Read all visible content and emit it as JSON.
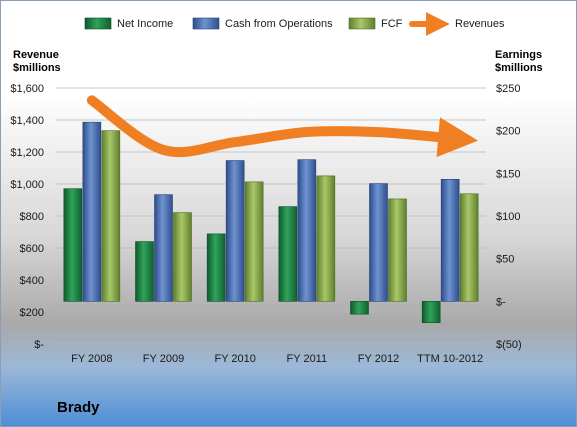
{
  "company": "Brady",
  "chart_data": {
    "type": "bar",
    "categories": [
      "FY 2008",
      "FY 2009",
      "FY 2010",
      "FY 2011",
      "FY 2012",
      "TTM 10-2012"
    ],
    "series": [
      {
        "name": "Net Income",
        "axis": "right",
        "kind": "bar",
        "color": "#1e8a4a",
        "values": [
          132,
          70,
          79,
          111,
          -15,
          -25
        ]
      },
      {
        "name": "Cash from Operations",
        "axis": "right",
        "kind": "bar",
        "color": "#4a6fb5",
        "values": [
          210,
          125,
          165,
          166,
          138,
          143
        ]
      },
      {
        "name": "FCF",
        "axis": "right",
        "kind": "bar",
        "color": "#8ab04e",
        "values": [
          200,
          104,
          140,
          147,
          120,
          126
        ]
      },
      {
        "name": "Revenues",
        "axis": "left",
        "kind": "line",
        "color": "#f07f24",
        "values": [
          1523,
          1213,
          1262,
          1325,
          1324,
          1286
        ]
      }
    ],
    "left_axis": {
      "title": [
        "Revenue",
        "$millions"
      ],
      "min": 0,
      "max": 1600,
      "step": 200,
      "tick_labels": [
        "$-",
        "$200",
        "$400",
        "$600",
        "$800",
        "$1,000",
        "$1,200",
        "$1,400",
        "$1,600"
      ]
    },
    "right_axis": {
      "title": [
        "Earnings",
        "$millions"
      ],
      "min": -50,
      "max": 250,
      "step": 50,
      "tick_labels": [
        "$(50)",
        "$-",
        "$50",
        "$100",
        "$150",
        "$200",
        "$250"
      ]
    },
    "legend": {
      "position": "top",
      "entries": [
        "Net Income",
        "Cash from Operations",
        "FCF",
        "Revenues"
      ]
    },
    "grid": true
  }
}
